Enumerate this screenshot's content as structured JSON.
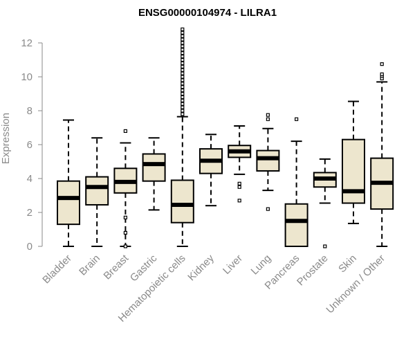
{
  "chart_data": {
    "type": "boxplot",
    "title": "ENSG00000104974 - LILRA1",
    "xlabel": "",
    "ylabel": "Expression",
    "ylim": [
      0,
      12.5
    ],
    "yticks": [
      0,
      2,
      4,
      6,
      8,
      10,
      12
    ],
    "box_fill": "#ede6ce",
    "categories": [
      "Bladder",
      "Brain",
      "Breast",
      "Gastric",
      "Hematopoietic cells",
      "Kidney",
      "Liver",
      "Lung",
      "Pancreas",
      "Prostate",
      "Skin",
      "Unknown / Other"
    ],
    "boxes": [
      {
        "name": "Bladder",
        "min": 0.0,
        "q1": 1.3,
        "median": 2.85,
        "q3": 3.85,
        "max": 7.45,
        "outliers": []
      },
      {
        "name": "Brain",
        "min": 0.0,
        "q1": 2.45,
        "median": 3.5,
        "q3": 4.1,
        "max": 6.4,
        "outliers": []
      },
      {
        "name": "Breast",
        "min": 0.0,
        "q1": 3.15,
        "median": 3.8,
        "q3": 4.6,
        "max": 6.1,
        "outliers": [
          6.8,
          1.7,
          0.8,
          0.0
        ]
      },
      {
        "name": "Gastric",
        "min": 2.15,
        "q1": 3.85,
        "median": 4.85,
        "q3": 5.45,
        "max": 6.4,
        "outliers": []
      },
      {
        "name": "Hematopoietic cells",
        "min": 0.0,
        "q1": 1.4,
        "median": 2.45,
        "q3": 3.9,
        "max": 7.65,
        "outliers": [
          7.8,
          8.0,
          8.2,
          8.4,
          8.6,
          8.8,
          9.0,
          9.2,
          9.4,
          9.6,
          9.8,
          10.0,
          10.2,
          10.4,
          10.6,
          10.8,
          11.0,
          11.2,
          11.4,
          11.6,
          11.8,
          12.0,
          12.2,
          12.4,
          12.6,
          12.8
        ]
      },
      {
        "name": "Kidney",
        "min": 2.4,
        "q1": 4.3,
        "median": 5.05,
        "q3": 5.75,
        "max": 6.6,
        "outliers": []
      },
      {
        "name": "Liver",
        "min": 4.25,
        "q1": 5.25,
        "median": 5.6,
        "q3": 5.95,
        "max": 7.1,
        "outliers": [
          3.7,
          3.5,
          2.7
        ]
      },
      {
        "name": "Lung",
        "min": 3.3,
        "q1": 4.45,
        "median": 5.2,
        "q3": 5.65,
        "max": 6.95,
        "outliers": [
          7.75,
          7.5,
          2.2
        ]
      },
      {
        "name": "Pancreas",
        "min": 0.0,
        "q1": 0.0,
        "median": 1.5,
        "q3": 2.5,
        "max": 6.2,
        "outliers": [
          7.5
        ]
      },
      {
        "name": "Prostate",
        "min": 2.55,
        "q1": 3.5,
        "median": 4.0,
        "q3": 4.35,
        "max": 5.15,
        "outliers": [
          0.0
        ]
      },
      {
        "name": "Skin",
        "min": 1.35,
        "q1": 2.55,
        "median": 3.25,
        "q3": 6.3,
        "max": 8.55,
        "outliers": []
      },
      {
        "name": "Unknown / Other",
        "min": 0.0,
        "q1": 2.2,
        "median": 3.75,
        "q3": 5.2,
        "max": 9.7,
        "outliers": [
          9.9,
          10.05,
          10.15,
          10.75
        ]
      }
    ]
  }
}
